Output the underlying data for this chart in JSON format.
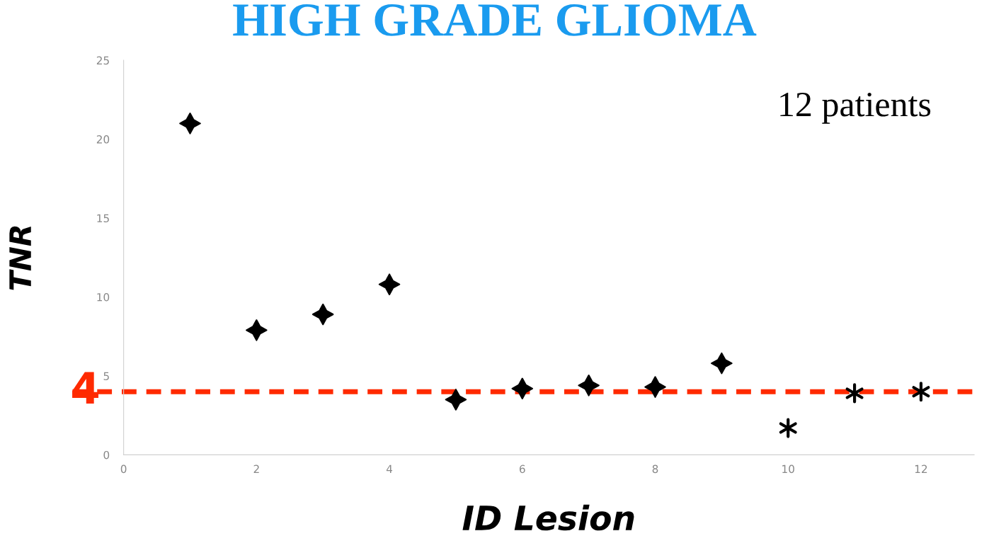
{
  "chart_data": {
    "type": "scatter",
    "title": "HIGH GRADE GLIOMA",
    "xlabel": "ID Lesion",
    "ylabel": "TNR",
    "annotations": [
      "12 patients"
    ],
    "series": [
      {
        "color": "#000000",
        "marker": "star",
        "x": [
          1,
          2,
          3,
          4,
          5,
          6,
          7,
          8,
          9
        ],
        "values": [
          21,
          7.9,
          8.9,
          10.8,
          3.5,
          4.2,
          4.4,
          4.3,
          5.8
        ]
      },
      {
        "color": "#000000",
        "marker": "cross",
        "x": [
          10,
          11,
          12
        ],
        "values": [
          1.7,
          3.9,
          4.0
        ]
      }
    ],
    "ref_lines": [
      {
        "axis": "y",
        "value": 4,
        "label": "4",
        "color": "#ff2a00",
        "line_style": "dashed"
      }
    ],
    "xlim": [
      0,
      12.8
    ],
    "ylim": [
      0,
      25
    ],
    "xticks": [
      0,
      2,
      4,
      6,
      8,
      10,
      12
    ],
    "yticks": [
      0,
      5,
      10,
      15,
      20,
      25
    ],
    "grid": false,
    "legend": false
  }
}
